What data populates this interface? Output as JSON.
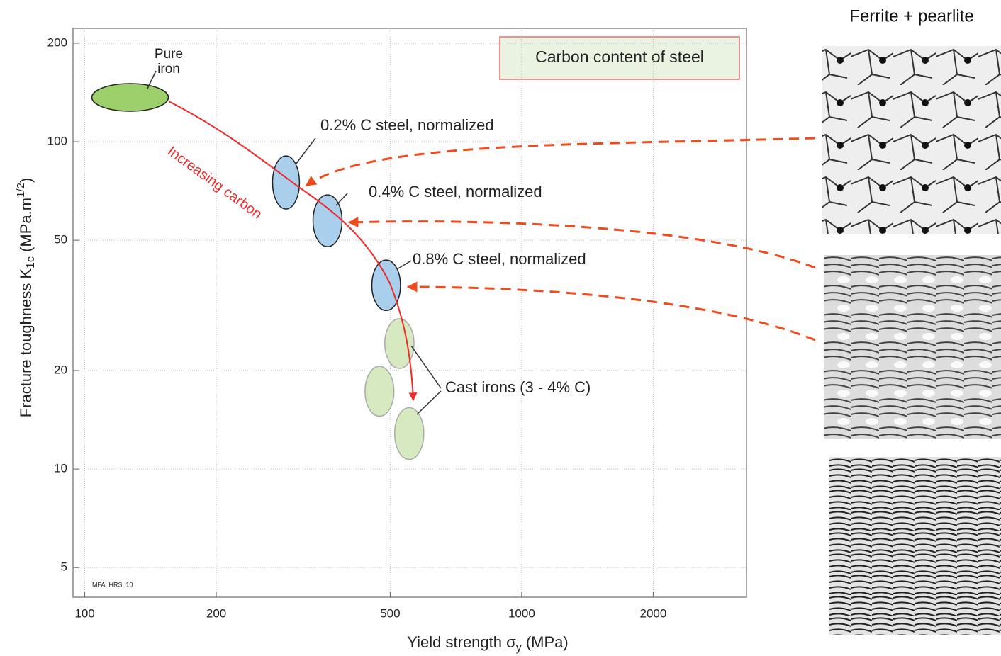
{
  "chart_data": {
    "type": "ellipse",
    "xlabel": [
      "Yield strength σ",
      "y",
      "  (MPa)"
    ],
    "ylabel": [
      "Fracture toughness K",
      "1c",
      "  (MPa.m",
      "1/2",
      ")"
    ],
    "xscale": "log",
    "yscale": "log",
    "grid": true,
    "xlim": [
      94,
      3270
    ],
    "ylim": [
      4.06,
      222
    ],
    "xticks": [
      100,
      200,
      500,
      1000,
      2000
    ],
    "yticks": [
      5,
      10,
      20,
      50,
      100,
      200
    ],
    "regions": [
      {
        "x": [
          103.8,
          155.4
        ],
        "y": [
          123.9,
          150.5
        ],
        "color": "#9dcf6a"
      },
      {
        "x": [
          269,
          310
        ],
        "y": [
          62.3,
          90.5
        ],
        "color": "#a9cfec"
      },
      {
        "x": [
          333,
          388
        ],
        "y": [
          47.8,
          68.8
        ],
        "color": "#a9cfec"
      },
      {
        "x": [
          454,
          528
        ],
        "y": [
          30.5,
          43.5
        ],
        "color": "#a9cfec"
      },
      {
        "x": [
          486,
          567
        ],
        "y": [
          20.3,
          28.8
        ],
        "color": "#d6e9c0"
      },
      {
        "x": [
          438,
          510
        ],
        "y": [
          14.5,
          20.6
        ],
        "color": "#d6e9c0"
      },
      {
        "x": [
          512,
          597
        ],
        "y": [
          10.7,
          15.4
        ],
        "color": "#d6e9c0"
      }
    ],
    "annotations": [
      "Pure iron",
      "0.2% C steel, normalized",
      "0.4% C steel, normalized",
      "0.8% C steel, normalized",
      "Cast irons (3 - 4% C)",
      "Increasing carbon",
      "MFA, HRS, 10"
    ],
    "box_label": "Carbon content of steel",
    "side_title": "Ferrite + pearlite"
  }
}
